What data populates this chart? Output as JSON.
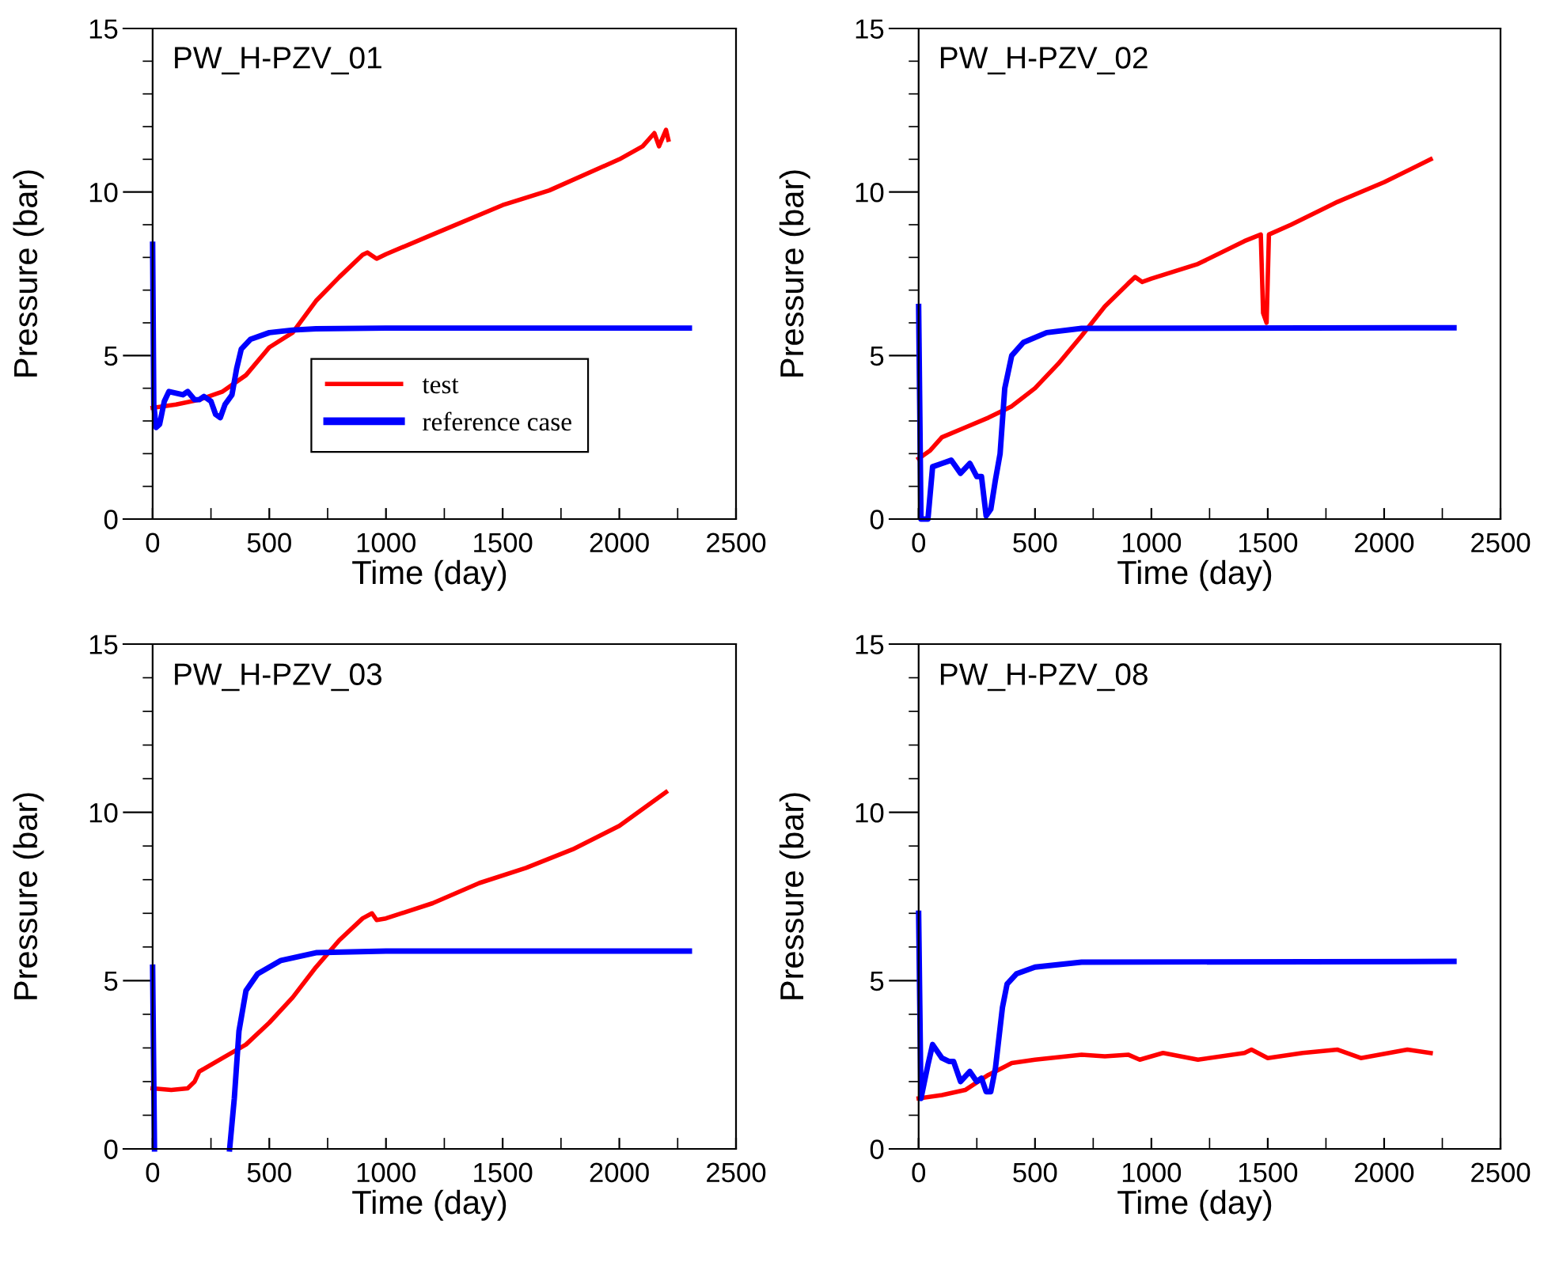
{
  "chart_data": [
    {
      "type": "line",
      "title": "PW_H-PZV_01",
      "xlabel": "Time (day)",
      "ylabel": "Pressure (bar)",
      "xlim": [
        -125,
        2500
      ],
      "ylim": [
        0,
        15
      ],
      "xticks": [
        0,
        {
          "value": 250,
          "label": null
        },
        500,
        {
          "value": 750,
          "label": null
        },
        1000,
        {
          "value": 1250,
          "label": null
        },
        1500,
        {
          "value": 1750,
          "label": null
        },
        2000,
        {
          "value": 2250,
          "label": null
        },
        2500
      ],
      "yticks": [
        0,
        {
          "value": 1,
          "label": null
        },
        {
          "value": 2,
          "label": null
        },
        {
          "value": 3,
          "label": null
        },
        {
          "value": 4,
          "label": null
        },
        5,
        {
          "value": 6,
          "label": null
        },
        {
          "value": 7,
          "label": null
        },
        {
          "value": 8,
          "label": null
        },
        {
          "value": 9,
          "label": null
        },
        10,
        {
          "value": 11,
          "label": null
        },
        {
          "value": 12,
          "label": null
        },
        {
          "value": 13,
          "label": null
        },
        {
          "value": 14,
          "label": null
        },
        15
      ],
      "grid": false,
      "legend": "bottom right",
      "line_style": "solid",
      "marker": "none",
      "series": [
        {
          "name": "test",
          "color": "#ff0000",
          "x": [
            0,
            100,
            200,
            300,
            400,
            500,
            600,
            700,
            800,
            900,
            920,
            960,
            1000,
            1200,
            1500,
            1700,
            2000,
            2100,
            2150,
            2170,
            2200,
            2210
          ],
          "values": [
            3.4,
            3.5,
            3.65,
            3.9,
            4.4,
            5.25,
            5.7,
            6.67,
            7.4,
            8.08,
            8.15,
            7.96,
            8.1,
            8.7,
            9.6,
            10.05,
            11.0,
            11.4,
            11.8,
            11.4,
            11.9,
            11.6
          ]
        },
        {
          "name": "reference case",
          "color": "#0000ff",
          "x": [
            0,
            5,
            15,
            30,
            50,
            70,
            100,
            130,
            150,
            180,
            200,
            220,
            250,
            270,
            290,
            310,
            340,
            360,
            380,
            420,
            500,
            600,
            700,
            1000,
            2300
          ],
          "values": [
            8.4,
            3.5,
            2.8,
            2.9,
            3.6,
            3.9,
            3.85,
            3.8,
            3.9,
            3.65,
            3.65,
            3.75,
            3.6,
            3.2,
            3.1,
            3.5,
            3.8,
            4.6,
            5.2,
            5.5,
            5.7,
            5.78,
            5.82,
            5.84,
            5.84
          ]
        }
      ]
    },
    {
      "type": "line",
      "title": "PW_H-PZV_02",
      "xlabel": "Time (day)",
      "ylabel": "Pressure (bar)",
      "xlim": [
        -125,
        2500
      ],
      "ylim": [
        0,
        15
      ],
      "xticks": [
        0,
        {
          "value": 250,
          "label": null
        },
        500,
        {
          "value": 750,
          "label": null
        },
        1000,
        {
          "value": 1250,
          "label": null
        },
        1500,
        {
          "value": 1750,
          "label": null
        },
        2000,
        {
          "value": 2250,
          "label": null
        },
        2500
      ],
      "yticks": [
        0,
        {
          "value": 1,
          "label": null
        },
        {
          "value": 2,
          "label": null
        },
        {
          "value": 3,
          "label": null
        },
        {
          "value": 4,
          "label": null
        },
        5,
        {
          "value": 6,
          "label": null
        },
        {
          "value": 7,
          "label": null
        },
        {
          "value": 8,
          "label": null
        },
        {
          "value": 9,
          "label": null
        },
        10,
        {
          "value": 11,
          "label": null
        },
        {
          "value": 12,
          "label": null
        },
        {
          "value": 13,
          "label": null
        },
        {
          "value": 14,
          "label": null
        },
        15
      ],
      "grid": false,
      "line_style": "solid",
      "marker": "none",
      "series": [
        {
          "color": "#ff0000",
          "x": [
            0,
            50,
            100,
            200,
            300,
            400,
            500,
            600,
            700,
            800,
            900,
            930,
            960,
            1000,
            1200,
            1400,
            1470,
            1480,
            1495,
            1505,
            1600,
            1800,
            2000,
            2200
          ],
          "values": [
            1.85,
            2.1,
            2.5,
            2.8,
            3.1,
            3.45,
            4.0,
            4.75,
            5.6,
            6.5,
            7.2,
            7.4,
            7.25,
            7.35,
            7.8,
            8.5,
            8.7,
            6.3,
            6.0,
            8.7,
            9.0,
            9.7,
            10.3,
            11.0
          ]
        },
        {
          "color": "#0000ff",
          "x": [
            0,
            10,
            40,
            60,
            100,
            140,
            180,
            220,
            250,
            270,
            290,
            310,
            330,
            350,
            370,
            400,
            450,
            550,
            700,
            2300
          ],
          "values": [
            6.5,
            0,
            0,
            1.6,
            1.7,
            1.8,
            1.4,
            1.7,
            1.3,
            1.3,
            0.1,
            0.3,
            1.2,
            2.0,
            4.0,
            5.0,
            5.4,
            5.7,
            5.83,
            5.85
          ]
        }
      ]
    },
    {
      "type": "line",
      "title": "PW_H-PZV_03",
      "xlabel": "Time (day)",
      "ylabel": "Pressure (bar)",
      "xlim": [
        -125,
        2500
      ],
      "ylim": [
        0,
        15
      ],
      "xticks": [
        0,
        {
          "value": 250,
          "label": null
        },
        500,
        {
          "value": 750,
          "label": null
        },
        1000,
        {
          "value": 1250,
          "label": null
        },
        1500,
        {
          "value": 1750,
          "label": null
        },
        2000,
        {
          "value": 2250,
          "label": null
        },
        2500
      ],
      "yticks": [
        0,
        {
          "value": 1,
          "label": null
        },
        {
          "value": 2,
          "label": null
        },
        {
          "value": 3,
          "label": null
        },
        {
          "value": 4,
          "label": null
        },
        5,
        {
          "value": 6,
          "label": null
        },
        {
          "value": 7,
          "label": null
        },
        {
          "value": 8,
          "label": null
        },
        {
          "value": 9,
          "label": null
        },
        10,
        {
          "value": 11,
          "label": null
        },
        {
          "value": 12,
          "label": null
        },
        {
          "value": 13,
          "label": null
        },
        {
          "value": 14,
          "label": null
        },
        15
      ],
      "grid": false,
      "line_style": "solid",
      "marker": "none",
      "series": [
        {
          "color": "#ff0000",
          "x": [
            0,
            80,
            150,
            180,
            200,
            300,
            400,
            500,
            600,
            700,
            800,
            900,
            940,
            960,
            1000,
            1200,
            1400,
            1600,
            1800,
            2000,
            2200
          ],
          "values": [
            1.8,
            1.75,
            1.8,
            2.0,
            2.3,
            2.7,
            3.1,
            3.75,
            4.5,
            5.4,
            6.2,
            6.85,
            7.0,
            6.8,
            6.85,
            7.3,
            7.9,
            8.35,
            8.9,
            9.6,
            10.6
          ]
        },
        {
          "color": "#0000ff",
          "x": [
            0,
            8,
            20,
            330,
            350,
            370,
            400,
            450,
            550,
            700,
            1000,
            2300
          ],
          "values": [
            5.4,
            0,
            null,
            0,
            1.5,
            3.5,
            4.7,
            5.2,
            5.6,
            5.83,
            5.88,
            5.88
          ]
        }
      ]
    },
    {
      "type": "line",
      "title": "PW_H-PZV_08",
      "xlabel": "Time (day)",
      "ylabel": "Pressure (bar)",
      "xlim": [
        -125,
        2500
      ],
      "ylim": [
        0,
        15
      ],
      "xticks": [
        0,
        {
          "value": 250,
          "label": null
        },
        500,
        {
          "value": 750,
          "label": null
        },
        1000,
        {
          "value": 1250,
          "label": null
        },
        1500,
        {
          "value": 1750,
          "label": null
        },
        2000,
        {
          "value": 2250,
          "label": null
        },
        2500
      ],
      "yticks": [
        0,
        {
          "value": 1,
          "label": null
        },
        {
          "value": 2,
          "label": null
        },
        {
          "value": 3,
          "label": null
        },
        {
          "value": 4,
          "label": null
        },
        5,
        {
          "value": 6,
          "label": null
        },
        {
          "value": 7,
          "label": null
        },
        {
          "value": 8,
          "label": null
        },
        {
          "value": 9,
          "label": null
        },
        10,
        {
          "value": 11,
          "label": null
        },
        {
          "value": 12,
          "label": null
        },
        {
          "value": 13,
          "label": null
        },
        {
          "value": 14,
          "label": null
        },
        15
      ],
      "grid": false,
      "line_style": "solid",
      "marker": "none",
      "series": [
        {
          "color": "#ff0000",
          "x": [
            0,
            100,
            200,
            300,
            400,
            500,
            700,
            800,
            900,
            950,
            1050,
            1200,
            1400,
            1430,
            1500,
            1650,
            1800,
            1900,
            2100,
            2200
          ],
          "values": [
            1.5,
            1.6,
            1.75,
            2.2,
            2.55,
            2.65,
            2.8,
            2.75,
            2.8,
            2.65,
            2.85,
            2.65,
            2.85,
            2.95,
            2.7,
            2.85,
            2.95,
            2.7,
            2.95,
            2.85
          ]
        },
        {
          "color": "#0000ff",
          "x": [
            0,
            10,
            40,
            60,
            100,
            130,
            150,
            180,
            220,
            250,
            270,
            290,
            310,
            330,
            360,
            380,
            420,
            500,
            700,
            2300
          ],
          "values": [
            7.0,
            1.5,
            2.5,
            3.1,
            2.7,
            2.6,
            2.6,
            2.0,
            2.3,
            2.0,
            2.1,
            1.7,
            1.7,
            2.4,
            4.2,
            4.9,
            5.2,
            5.4,
            5.55,
            5.57
          ]
        }
      ]
    }
  ]
}
